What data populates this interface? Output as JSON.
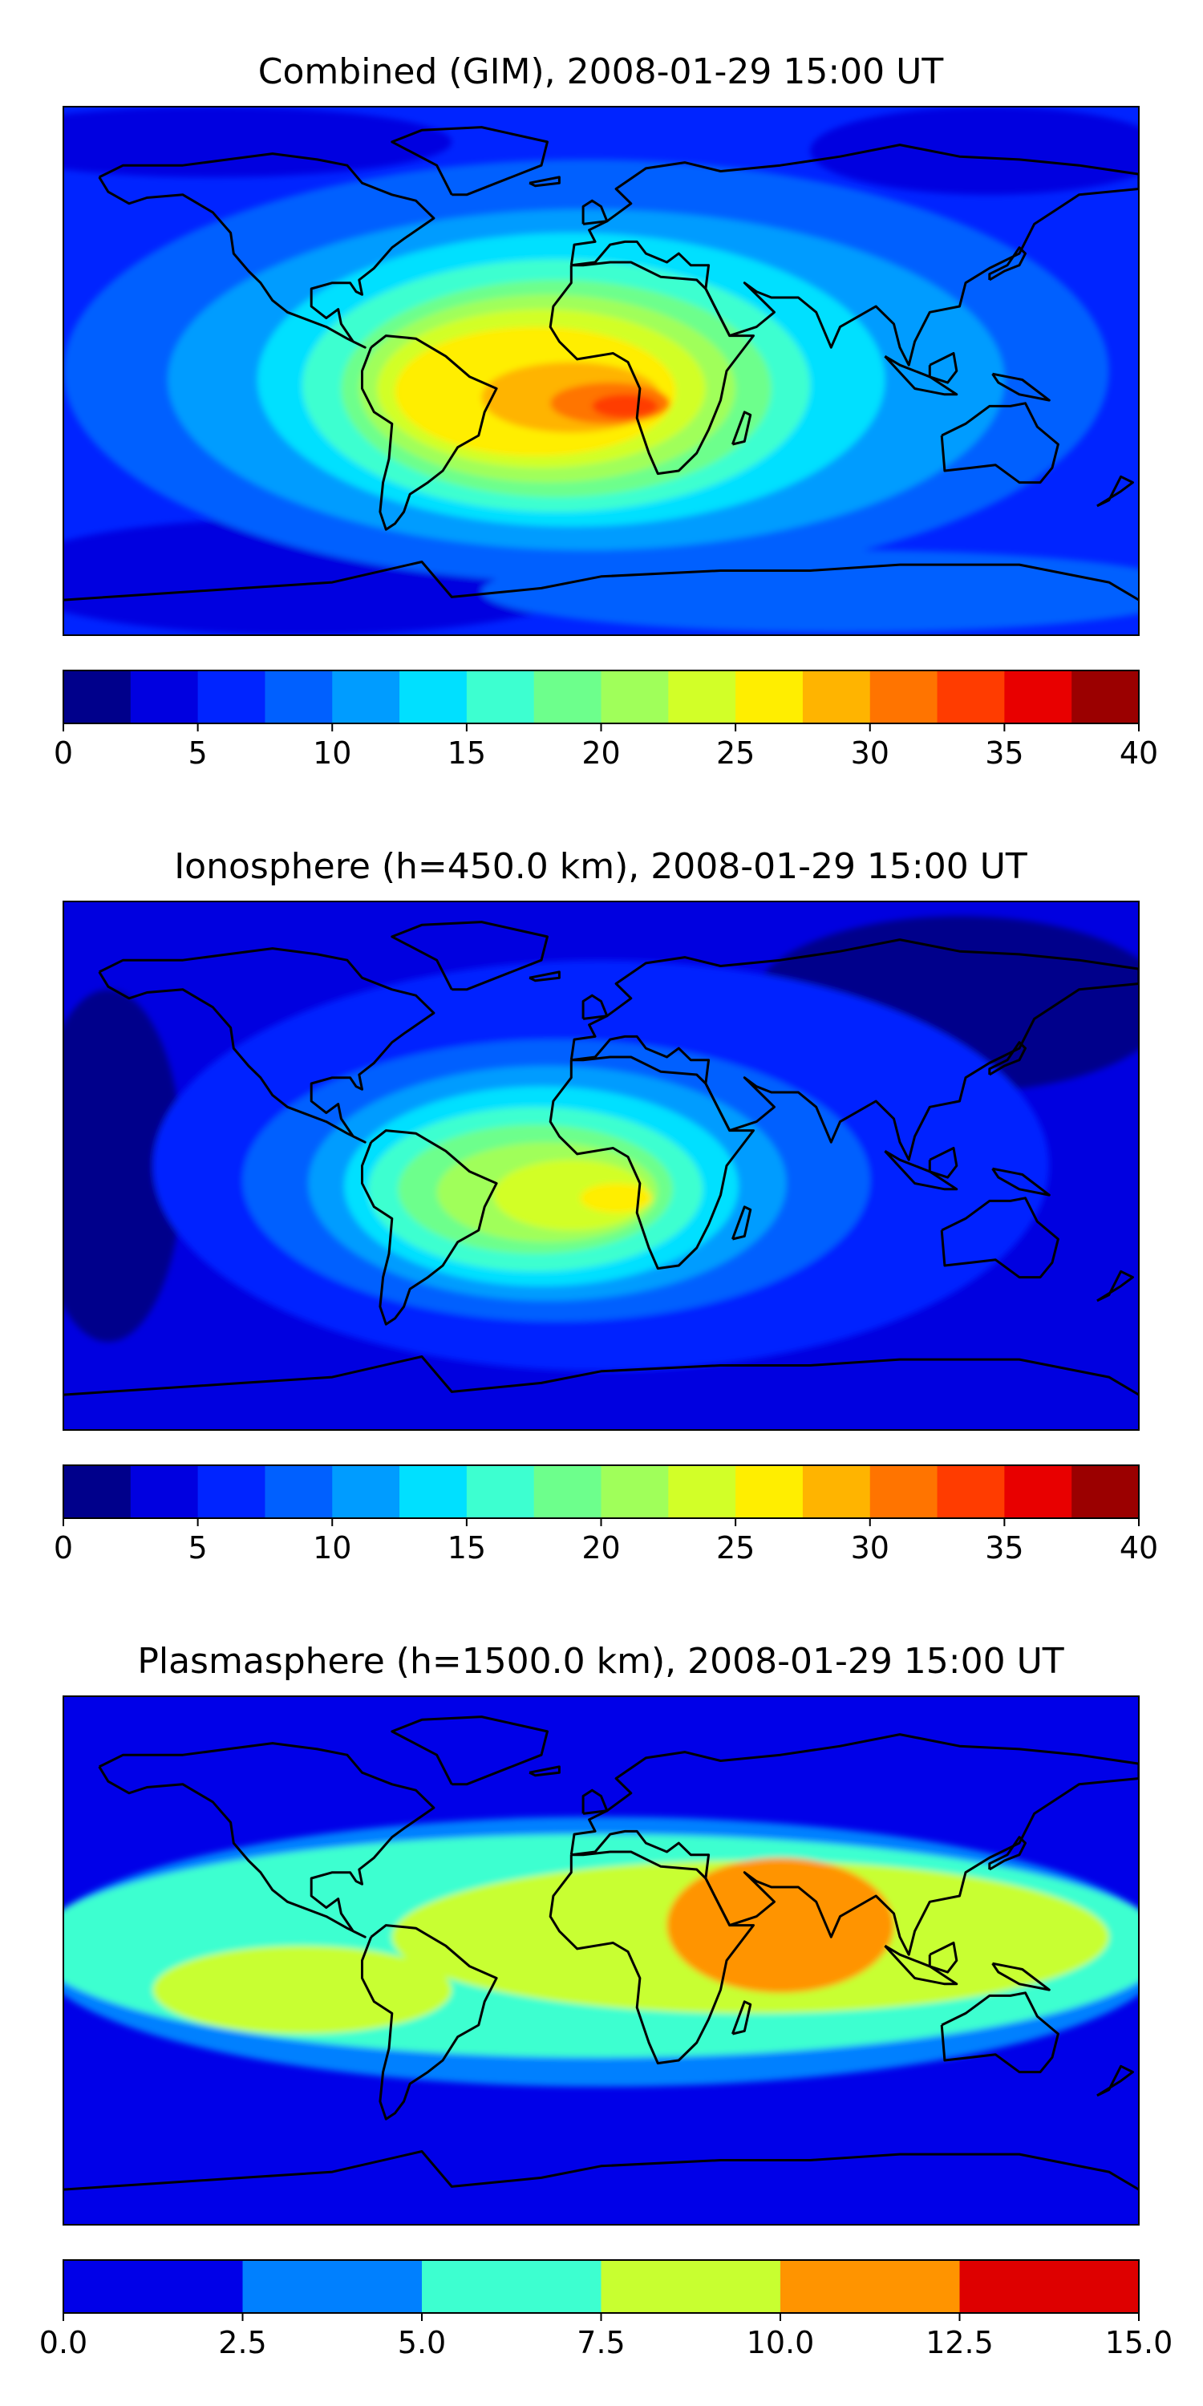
{
  "chart_data": [
    {
      "type": "heatmap",
      "title": "Combined (GIM), 2008-01-29 15:00 UT",
      "colorbar": {
        "ticks": [
          "0",
          "5",
          "10",
          "15",
          "20",
          "25",
          "30",
          "35",
          "40"
        ],
        "levels": [
          0,
          2.5,
          5,
          7.5,
          10,
          12.5,
          15,
          17.5,
          20,
          22.5,
          25,
          27.5,
          30,
          32.5,
          35,
          37.5,
          40
        ],
        "colors": [
          "#00008b",
          "#0000e0",
          "#0024ff",
          "#0060ff",
          "#009cff",
          "#00e0ff",
          "#3dffd0",
          "#6dff8c",
          "#a0ff5a",
          "#d2ff28",
          "#ffee00",
          "#ffb400",
          "#ff7400",
          "#ff3c00",
          "#e80000",
          "#9b0000"
        ]
      },
      "background_level": 2,
      "regions": [
        {
          "lon": -100,
          "lat": -70,
          "rx": 100,
          "ry": 20,
          "level": 1
        },
        {
          "lon": 80,
          "lat": -75,
          "rx": 120,
          "ry": 14,
          "level": 3
        },
        {
          "lon": 130,
          "lat": 75,
          "rx": 60,
          "ry": 15,
          "level": 1
        },
        {
          "lon": -130,
          "lat": 78,
          "rx": 80,
          "ry": 12,
          "level": 1
        },
        {
          "lon": -5,
          "lat": 0,
          "rx": 175,
          "ry": 72,
          "level": 3
        },
        {
          "lon": -5,
          "lat": -3,
          "rx": 140,
          "ry": 58,
          "level": 4
        },
        {
          "lon": -10,
          "lat": -3,
          "rx": 105,
          "ry": 50,
          "level": 5
        },
        {
          "lon": -15,
          "lat": -5,
          "rx": 85,
          "ry": 43,
          "level": 6
        },
        {
          "lon": -15,
          "lat": -6,
          "rx": 72,
          "ry": 37,
          "level": 7
        },
        {
          "lon": -18,
          "lat": -6,
          "rx": 63,
          "ry": 32,
          "level": 8
        },
        {
          "lon": -20,
          "lat": -6,
          "rx": 55,
          "ry": 27,
          "level": 9
        },
        {
          "lon": -22,
          "lat": -7,
          "rx": 47,
          "ry": 22,
          "level": 10
        },
        {
          "lon": -10,
          "lat": -9,
          "rx": 30,
          "ry": 12,
          "level": 11
        },
        {
          "lon": 3,
          "lat": -11,
          "rx": 20,
          "ry": 7,
          "level": 12
        },
        {
          "lon": 8,
          "lat": -12,
          "rx": 11,
          "ry": 4,
          "level": 13
        }
      ]
    },
    {
      "type": "heatmap",
      "title": "Ionosphere  (h=450.0 km), 2008-01-29 15:00 UT",
      "colorbar": {
        "ticks": [
          "0",
          "5",
          "10",
          "15",
          "20",
          "25",
          "30",
          "35",
          "40"
        ],
        "levels": [
          0,
          2.5,
          5,
          7.5,
          10,
          12.5,
          15,
          17.5,
          20,
          22.5,
          25,
          27.5,
          30,
          32.5,
          35,
          37.5,
          40
        ],
        "colors": [
          "#00008b",
          "#0000e0",
          "#0024ff",
          "#0060ff",
          "#009cff",
          "#00e0ff",
          "#3dffd0",
          "#6dff8c",
          "#a0ff5a",
          "#d2ff28",
          "#ffee00",
          "#ffb400",
          "#ff7400",
          "#ff3c00",
          "#e80000",
          "#9b0000"
        ]
      },
      "background_level": 1,
      "regions": [
        {
          "lon": -165,
          "lat": 0,
          "rx": 25,
          "ry": 60,
          "level": 0
        },
        {
          "lon": 120,
          "lat": 55,
          "rx": 70,
          "ry": 30,
          "level": 0
        },
        {
          "lon": 0,
          "lat": 0,
          "rx": 150,
          "ry": 70,
          "level": 2
        },
        {
          "lon": -10,
          "lat": 25,
          "rx": 95,
          "ry": 22,
          "level": 2
        },
        {
          "lon": -15,
          "lat": -5,
          "rx": 105,
          "ry": 48,
          "level": 3
        },
        {
          "lon": -18,
          "lat": -6,
          "rx": 80,
          "ry": 40,
          "level": 4
        },
        {
          "lon": -20,
          "lat": -7,
          "rx": 66,
          "ry": 34,
          "level": 5
        },
        {
          "lon": -22,
          "lat": -8,
          "rx": 56,
          "ry": 28,
          "level": 6
        },
        {
          "lon": -22,
          "lat": -8,
          "rx": 46,
          "ry": 22,
          "level": 7
        },
        {
          "lon": -18,
          "lat": -9,
          "rx": 37,
          "ry": 17,
          "level": 8
        },
        {
          "lon": -10,
          "lat": -10,
          "rx": 26,
          "ry": 12,
          "level": 9
        },
        {
          "lon": 5,
          "lat": -11,
          "rx": 12,
          "ry": 5,
          "level": 10
        }
      ]
    },
    {
      "type": "heatmap",
      "title": "Plasmasphere (h=1500.0 km), 2008-01-29 15:00 UT",
      "colorbar": {
        "ticks": [
          "0.0",
          "2.5",
          "5.0",
          "7.5",
          "10.0",
          "12.5",
          "15.0"
        ],
        "levels": [
          0,
          2.5,
          5,
          7.5,
          10,
          12.5,
          15
        ],
        "colors": [
          "#0000e8",
          "#0080ff",
          "#3dffd0",
          "#c8ff30",
          "#ff9400",
          "#de0000"
        ]
      },
      "background_level": 0,
      "regions": [
        {
          "lon": 0,
          "lat": 3,
          "rx": 190,
          "ry": 46,
          "level": 1
        },
        {
          "lon": 0,
          "lat": 5,
          "rx": 190,
          "ry": 38,
          "level": 2
        },
        {
          "lon": -100,
          "lat": -10,
          "rx": 50,
          "ry": 15,
          "level": 3
        },
        {
          "lon": 50,
          "lat": 8,
          "rx": 120,
          "ry": 26,
          "level": 3
        },
        {
          "lon": 60,
          "lat": 12,
          "rx": 38,
          "ry": 23,
          "level": 4
        }
      ]
    }
  ]
}
